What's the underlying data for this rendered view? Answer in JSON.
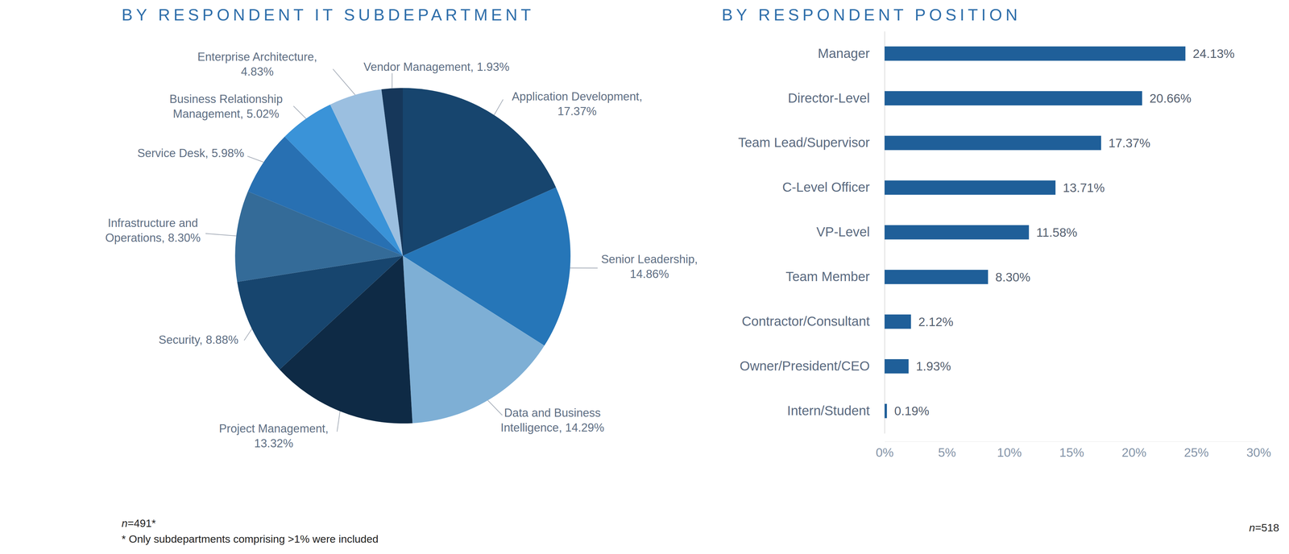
{
  "chart_data": [
    {
      "type": "pie",
      "title": "BY RESPONDENT IT SUBDEPARTMENT",
      "categories": [
        "Application Development,",
        "Senior Leadership,",
        "Data and Business Intelligence,",
        "Project Management,",
        "Security,",
        "Infrastructure and Operations,",
        "Service Desk,",
        "Business Relationship Management,",
        "Enterprise Architecture,",
        "Vendor Management,"
      ],
      "values": [
        17.37,
        14.86,
        14.29,
        13.32,
        8.88,
        8.3,
        5.98,
        5.02,
        4.83,
        1.93
      ],
      "value_labels": [
        "17.37%",
        "14.86%",
        "14.29%",
        "13.32%",
        "8.88%",
        "8.30%",
        "5.98%",
        "5.02%",
        "4.83%",
        "1.93%"
      ],
      "colors": [
        "#17456e",
        "#2676b8",
        "#7eafd5",
        "#0e2a45",
        "#17456e",
        "#346b98",
        "#2870b2",
        "#3a93d8",
        "#9bbfe0",
        "#16375a"
      ],
      "data_labels": true,
      "annotations": [
        "n=491*",
        "* Only subdepartments comprising >1% were included"
      ]
    },
    {
      "type": "bar",
      "title": "BY RESPONDENT POSITION",
      "orientation": "horizontal",
      "categories": [
        "Manager",
        "Director-Level",
        "Team Lead/Supervisor",
        "C-Level Officer",
        "VP-Level",
        "Team Member",
        "Contractor/Consultant",
        "Owner/President/CEO",
        "Intern/Student"
      ],
      "values": [
        24.13,
        20.66,
        17.37,
        13.71,
        11.58,
        8.3,
        2.12,
        1.93,
        0.19
      ],
      "value_labels": [
        "24.13%",
        "20.66%",
        "17.37%",
        "13.71%",
        "11.58%",
        "8.30%",
        "2.12%",
        "1.93%",
        "0.19%"
      ],
      "color": "#1f5f99",
      "xlim": [
        0,
        30
      ],
      "xticks": [
        {
          "value": 0,
          "label": "0%"
        },
        {
          "value": 5,
          "label": "5%"
        },
        {
          "value": 10,
          "label": "10%"
        },
        {
          "value": 15,
          "label": "15%"
        },
        {
          "value": 20,
          "label": "20%"
        },
        {
          "value": 25,
          "label": "25%"
        },
        {
          "value": 30,
          "label": "30%"
        }
      ],
      "grid": false,
      "data_labels": true,
      "annotations": [
        "n=518"
      ]
    }
  ]
}
